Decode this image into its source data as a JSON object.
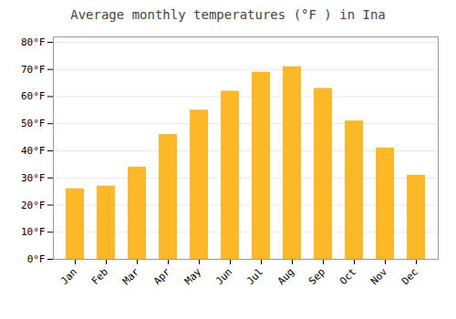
{
  "chart_data": {
    "type": "bar",
    "title": "Average monthly temperatures (°F ) in Ina",
    "categories": [
      "Jan",
      "Feb",
      "Mar",
      "Apr",
      "May",
      "Jun",
      "Jul",
      "Aug",
      "Sep",
      "Oct",
      "Nov",
      "Dec"
    ],
    "values": [
      26,
      27,
      34,
      46,
      55,
      62,
      69,
      71,
      63,
      51,
      41,
      31
    ],
    "color": "#FDB827",
    "ylim": [
      0,
      82
    ],
    "yticks": [
      {
        "value": 0,
        "label": "0°F"
      },
      {
        "value": 10,
        "label": "10°F"
      },
      {
        "value": 20,
        "label": "20°F"
      },
      {
        "value": 30,
        "label": "30°F"
      },
      {
        "value": 40,
        "label": "40°F"
      },
      {
        "value": 50,
        "label": "50°F"
      },
      {
        "value": 60,
        "label": "60°F"
      },
      {
        "value": 70,
        "label": "70°F"
      },
      {
        "value": 80,
        "label": "80°F"
      }
    ],
    "grid": true
  }
}
